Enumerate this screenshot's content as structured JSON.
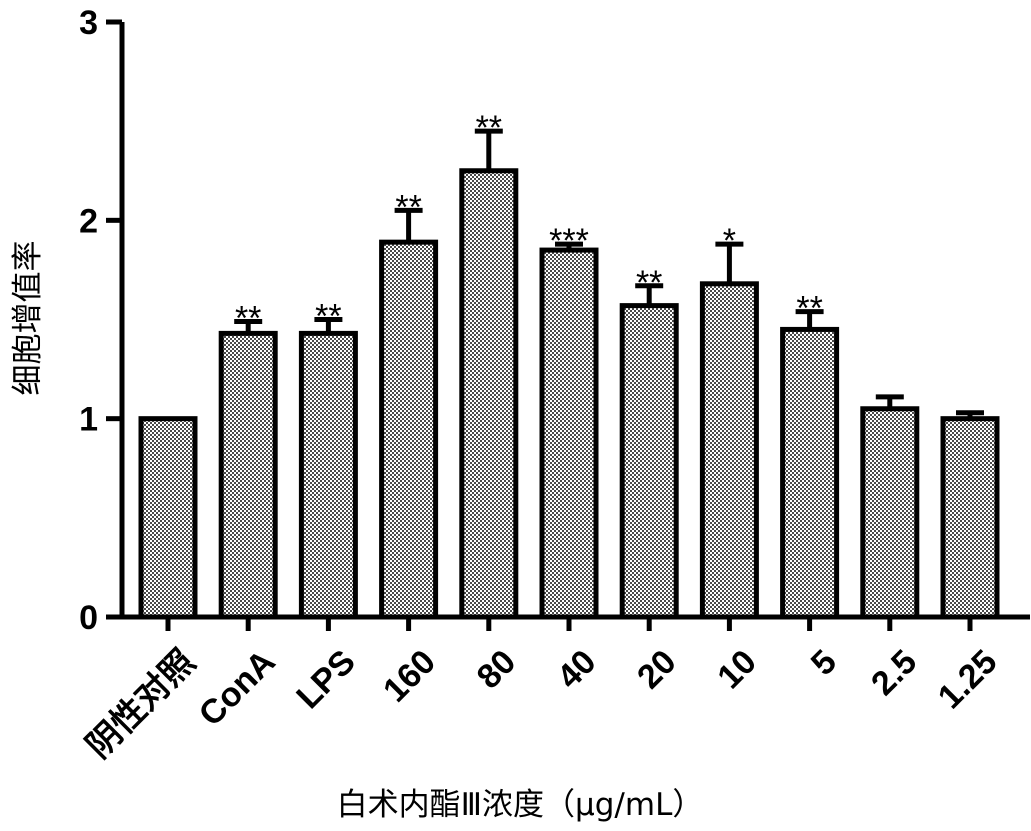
{
  "chart_data": {
    "type": "bar",
    "title": "",
    "xlabel": "白术内酯Ⅲ浓度（μg/mL）",
    "ylabel": "细胞增值率",
    "ylim": [
      0,
      3
    ],
    "yticks": [
      "0",
      "1",
      "2",
      "3"
    ],
    "grid": false,
    "categories": [
      "阴性对照",
      "ConA",
      "LPS",
      "160",
      "80",
      "40",
      "20",
      "10",
      "5",
      "2.5",
      "1.25"
    ],
    "values": [
      1.0,
      1.43,
      1.43,
      1.89,
      2.25,
      1.85,
      1.57,
      1.68,
      1.45,
      1.05,
      1.0
    ],
    "error": [
      0.0,
      0.06,
      0.07,
      0.16,
      0.2,
      0.03,
      0.1,
      0.2,
      0.09,
      0.06,
      0.03
    ],
    "significance": [
      "",
      "**",
      "**",
      "**",
      "**",
      "***",
      "**",
      "*",
      "**",
      "",
      ""
    ],
    "bar_fill": "checkered gray",
    "bar_edge_color": "#000000"
  }
}
